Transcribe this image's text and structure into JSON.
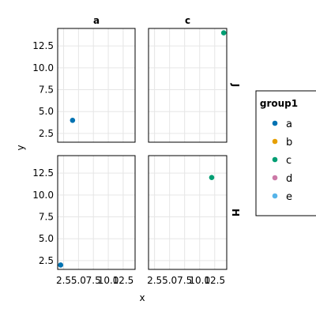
{
  "chart_data": {
    "type": "scatter",
    "xlabel": "x",
    "ylabel": "y",
    "xlim": [
      1.5,
      14.5
    ],
    "ylim": [
      1.5,
      14.5
    ],
    "x_ticks": [
      "2.5",
      "5.0",
      "7.5",
      "10.0",
      "12.5"
    ],
    "x_tick_values": [
      2.5,
      5.0,
      7.5,
      10.0,
      12.5
    ],
    "y_ticks": [
      "2.5",
      "5.0",
      "7.5",
      "10.0",
      "12.5"
    ],
    "y_tick_values": [
      2.5,
      5.0,
      7.5,
      10.0,
      12.5
    ],
    "grid": true,
    "legend_placement": "right",
    "column_facets": [
      "a",
      "c"
    ],
    "row_facets": [
      "J",
      "H"
    ],
    "legend": {
      "title": "group1",
      "entries": [
        {
          "label": "a",
          "color": "#0072B2"
        },
        {
          "label": "b",
          "color": "#E69F00"
        },
        {
          "label": "c",
          "color": "#009E73"
        },
        {
          "label": "d",
          "color": "#CC79A7"
        },
        {
          "label": "e",
          "color": "#56B4E9"
        }
      ]
    },
    "panels": [
      {
        "col": "a",
        "row": "J",
        "points": [
          {
            "x": 4,
            "y": 4,
            "group": "a"
          }
        ]
      },
      {
        "col": "c",
        "row": "J",
        "points": [
          {
            "x": 14,
            "y": 14,
            "group": "c"
          }
        ]
      },
      {
        "col": "a",
        "row": "H",
        "points": [
          {
            "x": 2,
            "y": 2,
            "group": "a"
          }
        ]
      },
      {
        "col": "c",
        "row": "H",
        "points": [
          {
            "x": 12,
            "y": 12,
            "group": "c"
          }
        ]
      }
    ]
  }
}
